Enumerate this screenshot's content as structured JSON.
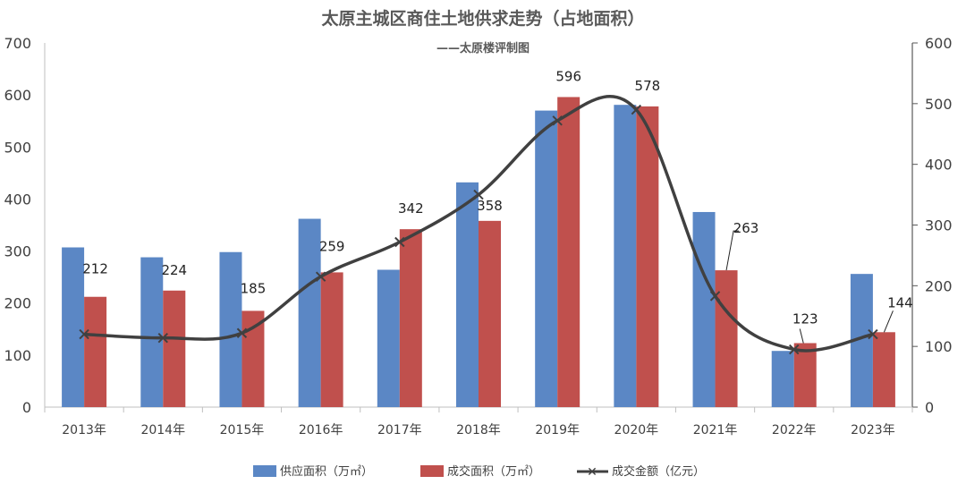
{
  "chart_data": {
    "type": "bar",
    "title": "太原主城区商住土地供求走势（占地面积）",
    "subtitle": "——太原楼评制图",
    "categories": [
      "2013年",
      "2014年",
      "2015年",
      "2016年",
      "2017年",
      "2018年",
      "2019年",
      "2020年",
      "2021年",
      "2022年",
      "2023年"
    ],
    "series": [
      {
        "name": "供应面积（万㎡）",
        "type": "bar",
        "axis": "left",
        "color": "#5b87c5",
        "values": [
          307,
          288,
          298,
          362,
          264,
          432,
          570,
          581,
          375,
          108,
          256
        ]
      },
      {
        "name": "成交面积（万㎡）",
        "type": "bar",
        "axis": "left",
        "color": "#c0504d",
        "values": [
          212,
          224,
          185,
          259,
          342,
          358,
          596,
          578,
          263,
          123,
          144
        ],
        "labels": [
          "212",
          "224",
          "185",
          "259",
          "342",
          "358",
          "596",
          "578",
          "263",
          "123",
          "144"
        ]
      },
      {
        "name": "成交金额（亿元）",
        "type": "line",
        "axis": "right",
        "color": "#404040",
        "marker": "x",
        "values": [
          120,
          114,
          122,
          215,
          272,
          350,
          472,
          490,
          183,
          95,
          120
        ]
      }
    ],
    "y_left": {
      "min": 0,
      "max": 700,
      "step": 100,
      "ticks": [
        "0",
        "100",
        "200",
        "300",
        "400",
        "500",
        "600",
        "700"
      ]
    },
    "y_right": {
      "min": 0,
      "max": 600,
      "step": 100,
      "ticks": [
        "0",
        "100",
        "200",
        "300",
        "400",
        "500",
        "600"
      ]
    },
    "grid": false,
    "legend_position": "bottom"
  }
}
